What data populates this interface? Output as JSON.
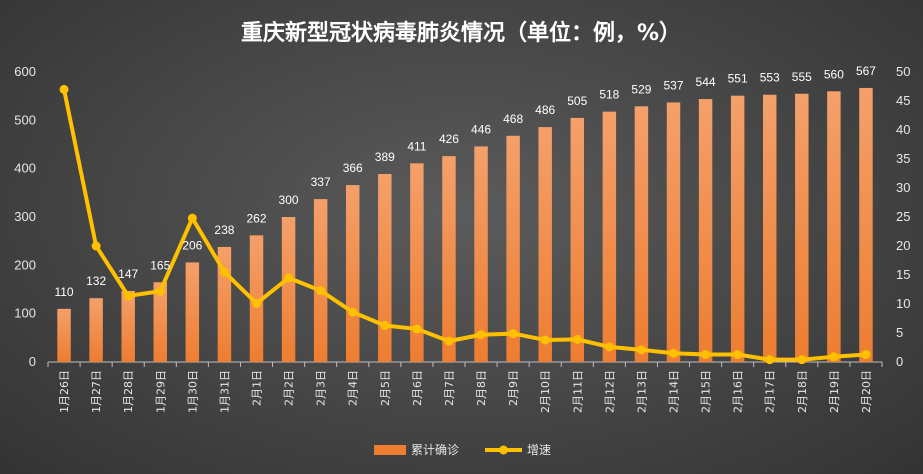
{
  "chart_data": {
    "type": "bar",
    "title": "重庆新型冠状病毒肺炎情况（单位：例，%）",
    "categories": [
      "1月26日",
      "1月27日",
      "1月28日",
      "1月29日",
      "1月30日",
      "1月31日",
      "2月1日",
      "2月2日",
      "2月3日",
      "2月4日",
      "2月5日",
      "2月6日",
      "2月7日",
      "2月8日",
      "2月9日",
      "2月10日",
      "2月11日",
      "2月12日",
      "2月13日",
      "2月14日",
      "2月15日",
      "2月16日",
      "2月17日",
      "2月18日",
      "2月19日",
      "2月20日"
    ],
    "series": [
      {
        "name": "累计确诊",
        "type": "bar",
        "axis": "left",
        "color": "#ed7d31",
        "values": [
          110,
          132,
          147,
          165,
          206,
          238,
          262,
          300,
          337,
          366,
          389,
          411,
          426,
          446,
          468,
          486,
          505,
          518,
          529,
          537,
          544,
          551,
          553,
          555,
          560,
          567
        ]
      },
      {
        "name": "增速",
        "type": "line",
        "axis": "right",
        "color": "#ffc000",
        "values": [
          47,
          20,
          11.4,
          12.2,
          24.8,
          15.5,
          10.1,
          14.5,
          12.3,
          8.6,
          6.3,
          5.7,
          3.6,
          4.7,
          4.9,
          3.8,
          3.9,
          2.6,
          2.1,
          1.5,
          1.3,
          1.3,
          0.4,
          0.4,
          0.9,
          1.3
        ]
      }
    ],
    "yleft": {
      "ylim": [
        0,
        600
      ],
      "ticks": [
        0,
        100,
        200,
        300,
        400,
        500,
        600
      ]
    },
    "yright": {
      "ylim": [
        0,
        50
      ],
      "ticks": [
        0,
        5,
        10,
        15,
        20,
        25,
        30,
        35,
        40,
        45,
        50
      ]
    },
    "grid": false,
    "legend": "bottom",
    "data_labels": "bars"
  }
}
